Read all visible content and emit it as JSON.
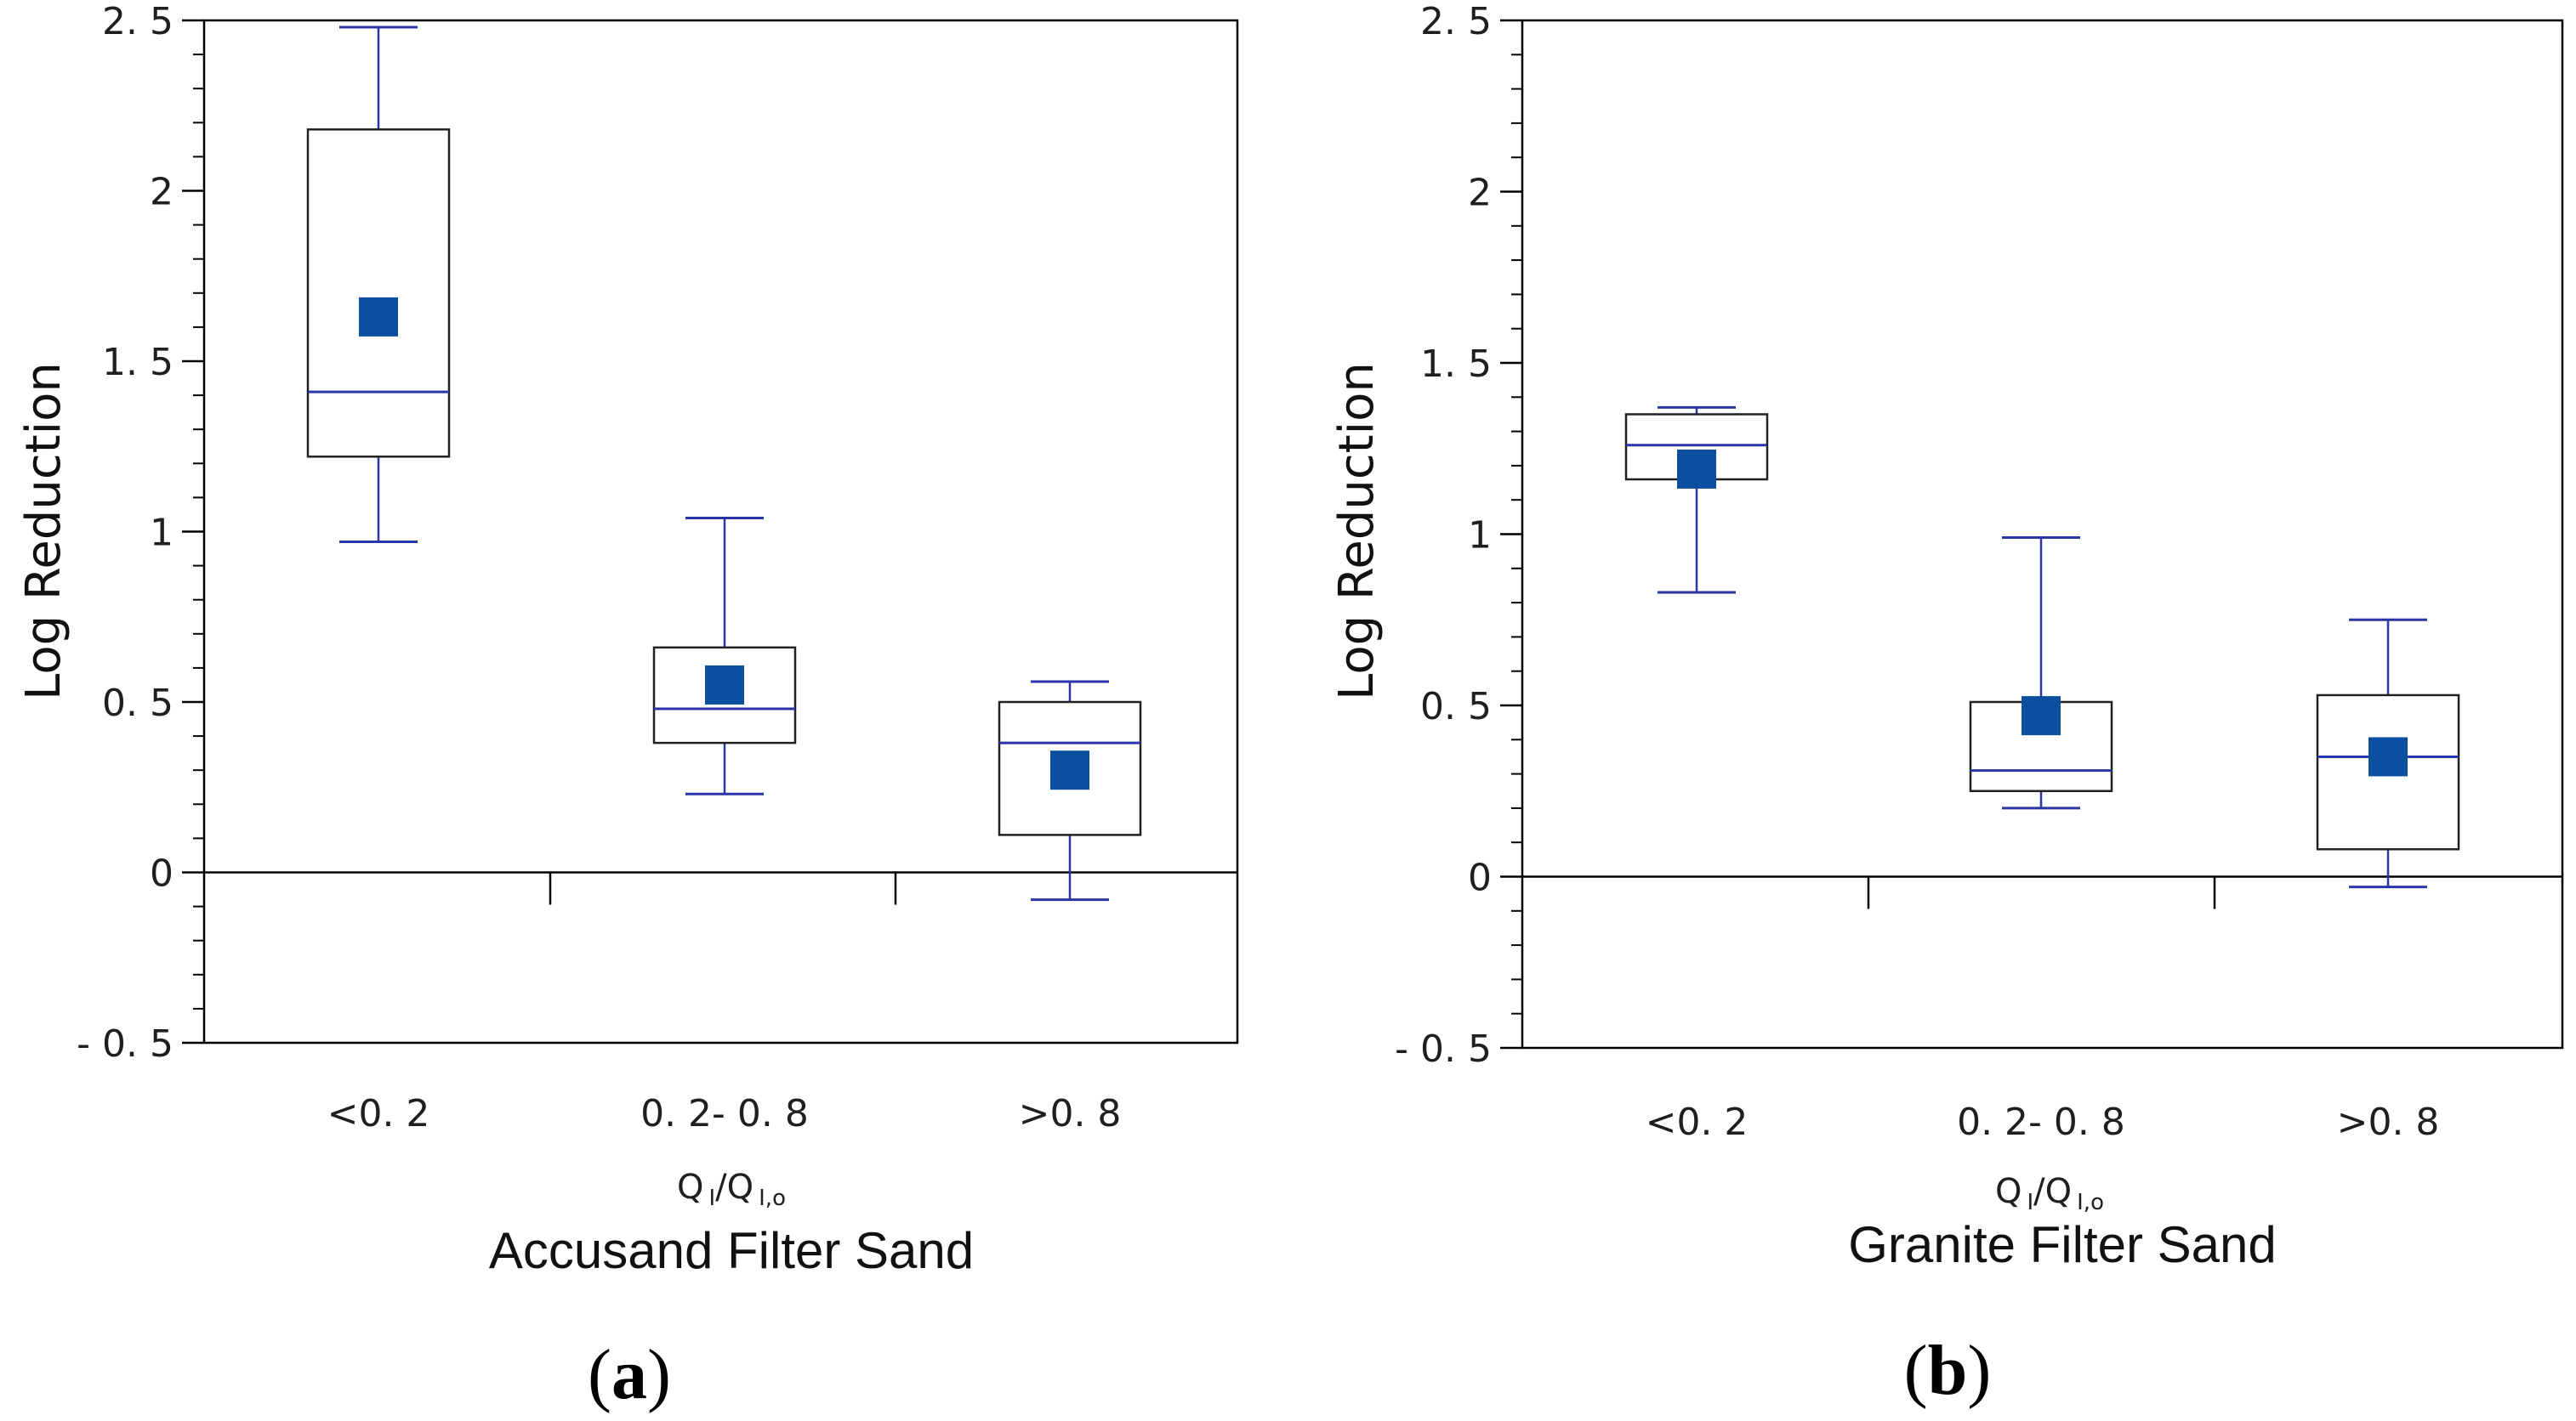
{
  "colors": {
    "series": "#2a35a8",
    "mean_marker": "#0a4fa0",
    "frame": "#000000"
  },
  "chart_data": [
    {
      "type": "box",
      "panel_label": "a",
      "title": "Accusand Filter Sand",
      "xlabel_main": "Q",
      "xlabel_sub1": "I",
      "xlabel_sep": "/Q",
      "xlabel_sub2": "I,o",
      "ylabel": "Log Reduction",
      "ylim": [
        -0.5,
        2.5
      ],
      "yticks": [
        -0.5,
        0,
        0.5,
        1,
        1.5,
        2,
        2.5
      ],
      "ytick_labels": [
        "- 0. 5",
        "0",
        "0. 5",
        "1",
        "1. 5",
        "2",
        "2. 5"
      ],
      "categories": [
        "<0. 2",
        "0. 2- 0. 8",
        ">0. 8"
      ],
      "boxes": [
        {
          "min": 0.97,
          "q1": 1.22,
          "median": 1.41,
          "q3": 2.18,
          "max": 2.48,
          "mean": 1.63
        },
        {
          "min": 0.23,
          "q1": 0.38,
          "median": 0.48,
          "q3": 0.66,
          "max": 1.04,
          "mean": 0.55
        },
        {
          "min": -0.08,
          "q1": 0.11,
          "median": 0.38,
          "q3": 0.5,
          "max": 0.56,
          "mean": 0.3
        }
      ]
    },
    {
      "type": "box",
      "panel_label": "b",
      "title": "Granite Filter Sand",
      "xlabel_main": "Q",
      "xlabel_sub1": "I",
      "xlabel_sep": "/Q",
      "xlabel_sub2": "I,o",
      "ylabel": "Log Reduction",
      "ylim": [
        -0.5,
        2.5
      ],
      "yticks": [
        -0.5,
        0,
        0.5,
        1,
        1.5,
        2,
        2.5
      ],
      "ytick_labels": [
        "- 0. 5",
        "0",
        "0. 5",
        "1",
        "1. 5",
        "2",
        "2. 5"
      ],
      "categories": [
        "<0. 2",
        "0. 2- 0. 8",
        ">0. 8"
      ],
      "boxes": [
        {
          "min": 0.83,
          "q1": 1.16,
          "median": 1.26,
          "q3": 1.35,
          "max": 1.37,
          "mean": 1.19
        },
        {
          "min": 0.2,
          "q1": 0.25,
          "median": 0.31,
          "q3": 0.51,
          "max": 0.99,
          "mean": 0.47
        },
        {
          "min": -0.03,
          "q1": 0.08,
          "median": 0.35,
          "q3": 0.53,
          "max": 0.75,
          "mean": 0.35
        }
      ]
    }
  ]
}
